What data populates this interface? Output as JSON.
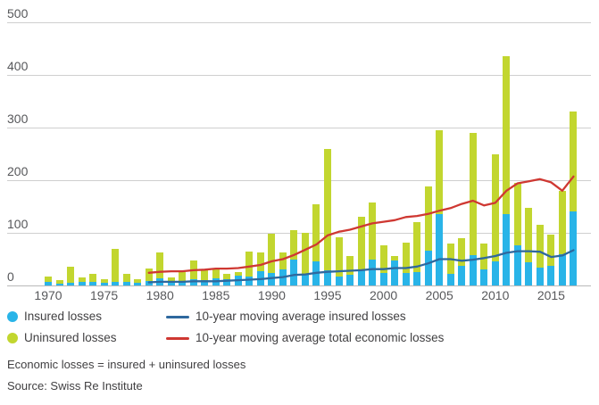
{
  "chart_data": {
    "type": "bar",
    "subtype": "stacked-bars-with-lines",
    "years": [
      1970,
      1971,
      1972,
      1973,
      1974,
      1975,
      1976,
      1977,
      1978,
      1979,
      1980,
      1981,
      1982,
      1983,
      1984,
      1985,
      1986,
      1987,
      1988,
      1989,
      1990,
      1991,
      1992,
      1993,
      1994,
      1995,
      1996,
      1997,
      1998,
      1999,
      2000,
      2001,
      2002,
      2003,
      2004,
      2005,
      2006,
      2007,
      2008,
      2009,
      2010,
      2011,
      2012,
      2013,
      2014,
      2015,
      2016,
      2017
    ],
    "series": [
      {
        "name": "Insured losses",
        "color": "#29b4e8",
        "values": [
          6,
          4,
          5,
          6,
          7,
          5,
          7,
          6,
          5,
          8,
          13,
          6,
          9,
          12,
          10,
          13,
          12,
          19,
          17,
          27,
          24,
          31,
          50,
          20,
          45,
          28,
          17,
          20,
          28,
          50,
          24,
          48,
          23,
          25,
          66,
          135,
          22,
          37,
          58,
          31,
          46,
          135,
          76,
          44,
          34,
          38,
          60,
          140
        ]
      },
      {
        "name": "Uninsured losses",
        "color": "#c2d62f",
        "values": [
          11,
          7,
          30,
          9,
          15,
          7,
          63,
          16,
          7,
          25,
          50,
          10,
          16,
          35,
          20,
          19,
          10,
          7,
          48,
          36,
          75,
          31,
          55,
          80,
          110,
          231,
          75,
          36,
          102,
          107,
          52,
          8,
          59,
          95,
          122,
          160,
          57,
          53,
          232,
          48,
          204,
          300,
          119,
          104,
          82,
          59,
          120,
          190
        ]
      }
    ],
    "lines": [
      {
        "name": "10-year moving average insured losses",
        "color": "#2e689e",
        "start_year": 1979,
        "values": [
          6,
          7,
          7,
          7,
          8,
          8,
          8,
          9,
          10,
          11,
          12,
          14,
          16,
          20,
          21,
          24,
          26,
          27,
          28,
          29,
          31,
          31,
          33,
          33,
          36,
          42,
          50,
          50,
          47,
          49,
          52,
          56,
          62,
          65,
          65,
          64,
          54,
          57,
          67
        ]
      },
      {
        "name": "10-year moving average total economic losses",
        "color": "#cf3832",
        "start_year": 1979,
        "values": [
          24,
          26,
          27,
          27,
          29,
          30,
          32,
          32,
          33,
          36,
          39,
          46,
          50,
          58,
          68,
          78,
          95,
          102,
          106,
          112,
          118,
          121,
          124,
          130,
          132,
          136,
          142,
          147,
          155,
          161,
          152,
          157,
          180,
          194,
          198,
          202,
          196,
          180,
          207
        ]
      }
    ],
    "y_axis": {
      "min": 0,
      "max": 500,
      "ticks": [
        0,
        100,
        200,
        300,
        400,
        500
      ]
    },
    "x_axis": {
      "tick_years": [
        1970,
        1975,
        1980,
        1985,
        1990,
        1995,
        2000,
        2005,
        2010,
        2015
      ]
    },
    "legend": {
      "insured_label": "Insured losses",
      "uninsured_label": "Uninsured losses",
      "ma_insured_label": "10-year moving average insured losses",
      "ma_total_label": "10-year moving average total economic losses"
    },
    "footnotes": {
      "definition": "Economic losses = insured + uninsured losses",
      "source": "Source: Swiss Re Institute"
    }
  }
}
